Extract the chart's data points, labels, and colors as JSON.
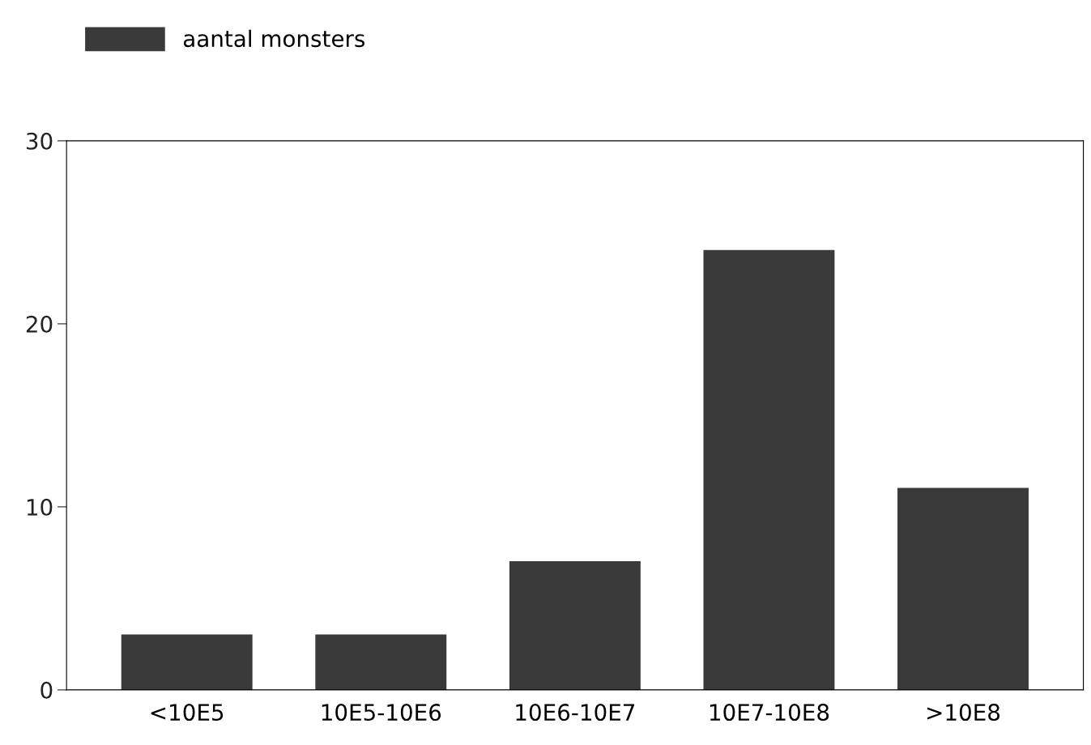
{
  "chart_data": {
    "type": "bar",
    "categories": [
      "<10E5",
      "10E5-10E6",
      "10E6-10E7",
      "10E7-10E8",
      ">10E8"
    ],
    "series": [
      {
        "name": "aantal monsters",
        "color": "#3a3a3a",
        "values": [
          3,
          3,
          7,
          24,
          11
        ]
      }
    ],
    "ylim": [
      0,
      30
    ],
    "yticks": [
      0,
      10,
      20,
      30
    ],
    "grid": false,
    "legend": "top left"
  }
}
